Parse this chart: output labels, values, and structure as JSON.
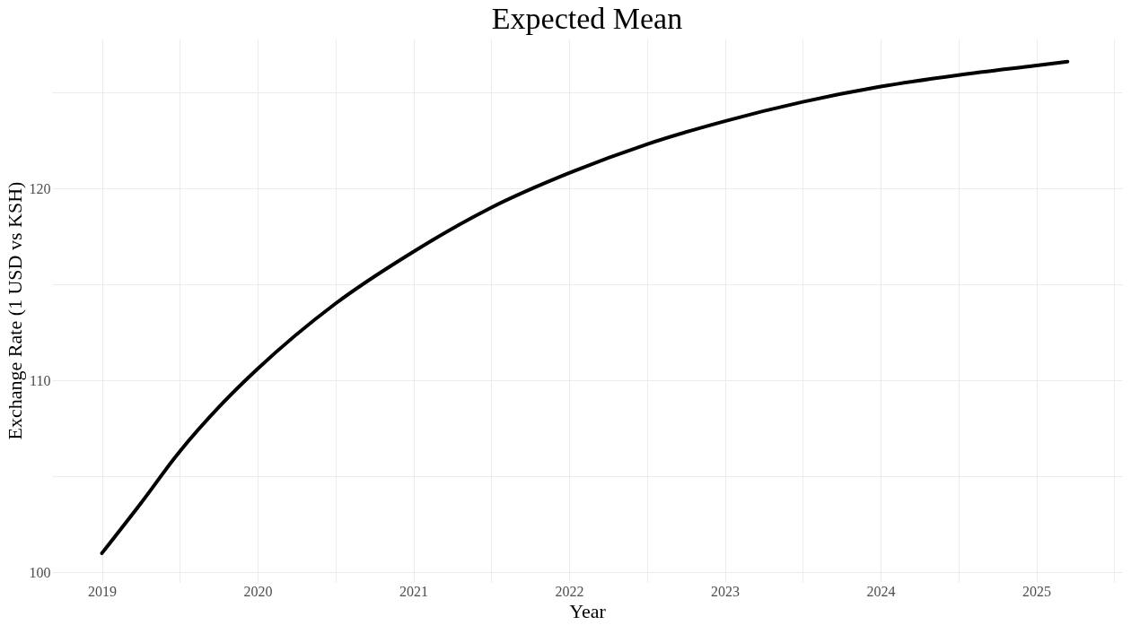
{
  "chart_data": {
    "type": "line",
    "title": "Expected Mean",
    "xlabel": "Year",
    "ylabel": "Exchange Rate (1 USD vs KSH)",
    "x": [
      2019,
      2019.25,
      2019.5,
      2019.75,
      2020,
      2020.5,
      2021,
      2021.5,
      2022,
      2022.5,
      2023,
      2023.5,
      2024,
      2024.5,
      2025,
      2025.2
    ],
    "series": [
      {
        "color": "#000000",
        "values": [
          101.0,
          103.6,
          106.3,
          108.6,
          110.6,
          114.0,
          116.7,
          119.0,
          120.8,
          122.3,
          123.5,
          124.5,
          125.3,
          125.9,
          126.4,
          126.6
        ]
      }
    ],
    "xlim": [
      2018.68,
      2025.55
    ],
    "ylim": [
      99.5,
      127.8
    ],
    "xticks": [
      2019,
      {
        "value": 2019.5,
        "label": null
      },
      2020,
      {
        "value": 2020.5,
        "label": null
      },
      2021,
      {
        "value": 2021.5,
        "label": null
      },
      2022,
      {
        "value": 2022.5,
        "label": null
      },
      2023,
      {
        "value": 2023.5,
        "label": null
      },
      2024,
      {
        "value": 2024.5,
        "label": null
      },
      2025,
      {
        "value": 2025.5,
        "label": null
      }
    ],
    "yticks": [
      100,
      {
        "value": 105,
        "label": null
      },
      110,
      {
        "value": 115,
        "label": null
      },
      120,
      {
        "value": 125,
        "label": null
      }
    ],
    "grid": true,
    "marker": "none",
    "line_style": "solid"
  }
}
